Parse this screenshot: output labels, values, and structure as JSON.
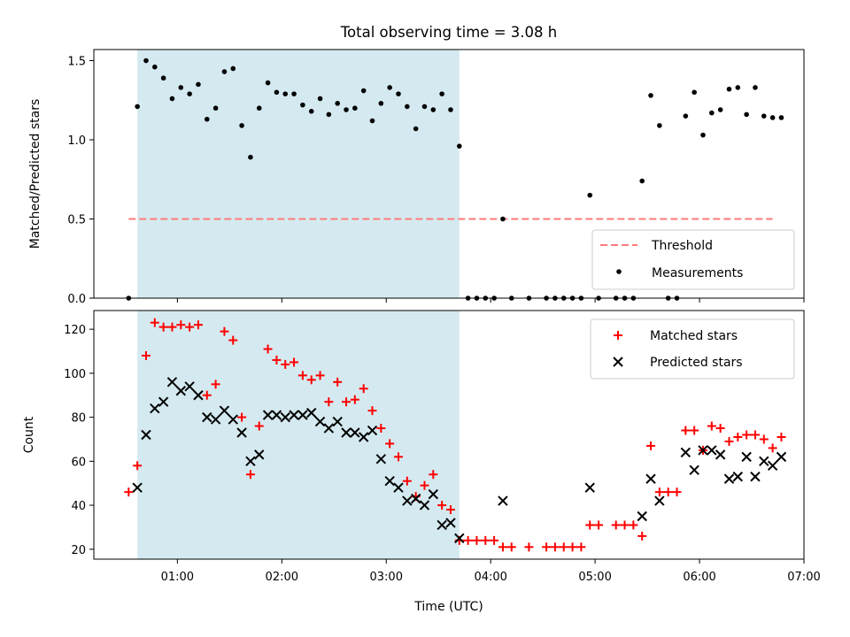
{
  "chart_data": {
    "title": "Total observing time = 3.08 h",
    "shaded_region": {
      "start": "00:37",
      "end": "03:42",
      "color": "#d4eaf0"
    },
    "x_axis": {
      "label": "Time (UTC)",
      "range": [
        "00:12",
        "07:00"
      ],
      "ticks": [
        "01:00",
        "02:00",
        "03:00",
        "04:00",
        "05:00",
        "06:00",
        "07:00"
      ]
    },
    "panels": [
      {
        "type": "scatter",
        "ylabel": "Matched/Predicted stars",
        "ylim": [
          0,
          1.57
        ],
        "yticks": [
          "0.0",
          "0.5",
          "1.0",
          "1.5"
        ],
        "threshold": {
          "name": "Threshold",
          "value": 0.5,
          "start": "00:32",
          "end": "06:42",
          "color": "#ff7a7a",
          "style": "dashed"
        },
        "series": [
          {
            "name": "Measurements",
            "color": "#000000",
            "marker": "dot",
            "points": [
              [
                "00:32",
                0.0
              ],
              [
                "00:37",
                1.21
              ],
              [
                "00:42",
                1.5
              ],
              [
                "00:47",
                1.46
              ],
              [
                "00:52",
                1.39
              ],
              [
                "00:57",
                1.26
              ],
              [
                "01:02",
                1.33
              ],
              [
                "01:07",
                1.29
              ],
              [
                "01:12",
                1.35
              ],
              [
                "01:17",
                1.13
              ],
              [
                "01:22",
                1.2
              ],
              [
                "01:27",
                1.43
              ],
              [
                "01:32",
                1.45
              ],
              [
                "01:37",
                1.09
              ],
              [
                "01:42",
                0.89
              ],
              [
                "01:47",
                1.2
              ],
              [
                "01:52",
                1.36
              ],
              [
                "01:57",
                1.3
              ],
              [
                "02:02",
                1.29
              ],
              [
                "02:07",
                1.29
              ],
              [
                "02:12",
                1.22
              ],
              [
                "02:17",
                1.18
              ],
              [
                "02:22",
                1.26
              ],
              [
                "02:27",
                1.16
              ],
              [
                "02:32",
                1.23
              ],
              [
                "02:37",
                1.19
              ],
              [
                "02:42",
                1.2
              ],
              [
                "02:47",
                1.31
              ],
              [
                "02:52",
                1.12
              ],
              [
                "02:57",
                1.23
              ],
              [
                "03:02",
                1.33
              ],
              [
                "03:07",
                1.29
              ],
              [
                "03:12",
                1.21
              ],
              [
                "03:17",
                1.07
              ],
              [
                "03:22",
                1.21
              ],
              [
                "03:27",
                1.19
              ],
              [
                "03:32",
                1.29
              ],
              [
                "03:37",
                1.19
              ],
              [
                "03:42",
                0.96
              ],
              [
                "03:47",
                0.0
              ],
              [
                "03:52",
                0.0
              ],
              [
                "03:57",
                0.0
              ],
              [
                "04:02",
                0.0
              ],
              [
                "04:07",
                0.5
              ],
              [
                "04:12",
                0.0
              ],
              [
                "04:22",
                0.0
              ],
              [
                "04:32",
                0.0
              ],
              [
                "04:37",
                0.0
              ],
              [
                "04:42",
                0.0
              ],
              [
                "04:47",
                0.0
              ],
              [
                "04:52",
                0.0
              ],
              [
                "04:57",
                0.65
              ],
              [
                "05:02",
                0.0
              ],
              [
                "05:12",
                0.0
              ],
              [
                "05:17",
                0.0
              ],
              [
                "05:22",
                0.0
              ],
              [
                "05:27",
                0.74
              ],
              [
                "05:32",
                1.28
              ],
              [
                "05:37",
                1.09
              ],
              [
                "05:42",
                0.0
              ],
              [
                "05:47",
                0.0
              ],
              [
                "05:52",
                1.15
              ],
              [
                "05:57",
                1.3
              ],
              [
                "06:02",
                1.03
              ],
              [
                "06:07",
                1.17
              ],
              [
                "06:12",
                1.19
              ],
              [
                "06:17",
                1.32
              ],
              [
                "06:22",
                1.33
              ],
              [
                "06:27",
                1.16
              ],
              [
                "06:32",
                1.33
              ],
              [
                "06:37",
                1.15
              ],
              [
                "06:42",
                1.14
              ],
              [
                "06:47",
                1.14
              ]
            ]
          }
        ],
        "legend": {
          "placement": "lower-right"
        }
      },
      {
        "type": "scatter",
        "ylabel": "Count",
        "ylim": [
          15.5,
          128.5
        ],
        "yticks": [
          "20",
          "40",
          "60",
          "80",
          "100",
          "120"
        ],
        "series": [
          {
            "name": "Matched stars",
            "color": "#ff0000",
            "marker": "plus",
            "points": [
              [
                "00:32",
                46
              ],
              [
                "00:37",
                58
              ],
              [
                "00:42",
                108
              ],
              [
                "00:47",
                123
              ],
              [
                "00:52",
                121
              ],
              [
                "00:57",
                121
              ],
              [
                "01:02",
                122
              ],
              [
                "01:07",
                121
              ],
              [
                "01:12",
                122
              ],
              [
                "01:17",
                90
              ],
              [
                "01:22",
                95
              ],
              [
                "01:27",
                119
              ],
              [
                "01:32",
                115
              ],
              [
                "01:37",
                80
              ],
              [
                "01:42",
                54
              ],
              [
                "01:47",
                76
              ],
              [
                "01:52",
                111
              ],
              [
                "01:57",
                106
              ],
              [
                "02:02",
                104
              ],
              [
                "02:07",
                105
              ],
              [
                "02:12",
                99
              ],
              [
                "02:17",
                97
              ],
              [
                "02:22",
                99
              ],
              [
                "02:27",
                87
              ],
              [
                "02:32",
                96
              ],
              [
                "02:37",
                87
              ],
              [
                "02:42",
                88
              ],
              [
                "02:47",
                93
              ],
              [
                "02:52",
                83
              ],
              [
                "02:57",
                75
              ],
              [
                "03:02",
                68
              ],
              [
                "03:07",
                62
              ],
              [
                "03:12",
                51
              ],
              [
                "03:17",
                44
              ],
              [
                "03:22",
                49
              ],
              [
                "03:27",
                54
              ],
              [
                "03:32",
                40
              ],
              [
                "03:37",
                38
              ],
              [
                "03:42",
                24
              ],
              [
                "03:47",
                24
              ],
              [
                "03:52",
                24
              ],
              [
                "03:57",
                24
              ],
              [
                "04:02",
                24
              ],
              [
                "04:07",
                21
              ],
              [
                "04:12",
                21
              ],
              [
                "04:22",
                21
              ],
              [
                "04:32",
                21
              ],
              [
                "04:37",
                21
              ],
              [
                "04:42",
                21
              ],
              [
                "04:47",
                21
              ],
              [
                "04:52",
                21
              ],
              [
                "04:57",
                31
              ],
              [
                "05:02",
                31
              ],
              [
                "05:12",
                31
              ],
              [
                "05:17",
                31
              ],
              [
                "05:22",
                31
              ],
              [
                "05:27",
                26
              ],
              [
                "05:32",
                67
              ],
              [
                "05:37",
                46
              ],
              [
                "05:42",
                46
              ],
              [
                "05:47",
                46
              ],
              [
                "05:52",
                74
              ],
              [
                "05:57",
                74
              ],
              [
                "06:02",
                65
              ],
              [
                "06:07",
                76
              ],
              [
                "06:12",
                75
              ],
              [
                "06:17",
                69
              ],
              [
                "06:22",
                71
              ],
              [
                "06:27",
                72
              ],
              [
                "06:32",
                72
              ],
              [
                "06:37",
                70
              ],
              [
                "06:42",
                66
              ],
              [
                "06:47",
                71
              ]
            ]
          },
          {
            "name": "Predicted stars",
            "color": "#000000",
            "marker": "x",
            "points": [
              [
                "00:37",
                48
              ],
              [
                "00:42",
                72
              ],
              [
                "00:47",
                84
              ],
              [
                "00:52",
                87
              ],
              [
                "00:57",
                96
              ],
              [
                "01:02",
                92
              ],
              [
                "01:07",
                94
              ],
              [
                "01:12",
                90
              ],
              [
                "01:17",
                80
              ],
              [
                "01:22",
                79
              ],
              [
                "01:27",
                83
              ],
              [
                "01:32",
                79
              ],
              [
                "01:37",
                73
              ],
              [
                "01:42",
                60
              ],
              [
                "01:47",
                63
              ],
              [
                "01:52",
                81
              ],
              [
                "01:57",
                81
              ],
              [
                "02:02",
                80
              ],
              [
                "02:07",
                81
              ],
              [
                "02:12",
                81
              ],
              [
                "02:17",
                82
              ],
              [
                "02:22",
                78
              ],
              [
                "02:27",
                75
              ],
              [
                "02:32",
                78
              ],
              [
                "02:37",
                73
              ],
              [
                "02:42",
                73
              ],
              [
                "02:47",
                71
              ],
              [
                "02:52",
                74
              ],
              [
                "02:57",
                61
              ],
              [
                "03:02",
                51
              ],
              [
                "03:07",
                48
              ],
              [
                "03:12",
                42
              ],
              [
                "03:17",
                43
              ],
              [
                "03:22",
                40
              ],
              [
                "03:27",
                45
              ],
              [
                "03:32",
                31
              ],
              [
                "03:37",
                32
              ],
              [
                "03:42",
                25
              ],
              [
                "04:07",
                42
              ],
              [
                "04:57",
                48
              ],
              [
                "05:27",
                35
              ],
              [
                "05:32",
                52
              ],
              [
                "05:37",
                42
              ],
              [
                "05:52",
                64
              ],
              [
                "05:57",
                56
              ],
              [
                "06:02",
                65
              ],
              [
                "06:07",
                65
              ],
              [
                "06:12",
                63
              ],
              [
                "06:17",
                52
              ],
              [
                "06:22",
                53
              ],
              [
                "06:27",
                62
              ],
              [
                "06:32",
                53
              ],
              [
                "06:37",
                60
              ],
              [
                "06:42",
                58
              ],
              [
                "06:47",
                62
              ]
            ]
          }
        ],
        "legend": {
          "placement": "upper-right"
        }
      }
    ]
  }
}
